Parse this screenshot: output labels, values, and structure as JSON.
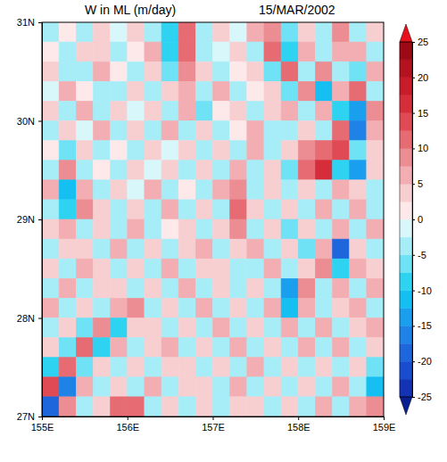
{
  "chart_data": {
    "type": "heatmap",
    "title": "W in ML (m/day)",
    "subtitle": "15/MAR/2002",
    "x": [
      155.1,
      155.3,
      155.5,
      155.7,
      155.9,
      156.1,
      156.3,
      156.5,
      156.7,
      156.9,
      157.1,
      157.3,
      157.5,
      157.7,
      157.9,
      158.1,
      158.3,
      158.5,
      158.7,
      158.9
    ],
    "y": [
      30.9,
      30.7,
      30.5,
      30.3,
      30.1,
      29.9,
      29.7,
      29.5,
      29.3,
      29.1,
      28.9,
      28.7,
      28.5,
      28.3,
      28.1,
      27.9,
      27.7,
      27.5,
      27.3,
      27.1
    ],
    "values": [
      [
        -3,
        2,
        -4,
        3,
        -2,
        4,
        -3,
        -8,
        10,
        -4,
        3,
        -2,
        5,
        8,
        -6,
        4,
        -3,
        9,
        -5,
        3
      ],
      [
        2,
        -5,
        3,
        4,
        -3,
        2,
        5,
        -10,
        12,
        -3,
        -2,
        4,
        -5,
        10,
        -8,
        6,
        -4,
        5,
        7,
        -4
      ],
      [
        4,
        -3,
        -4,
        6,
        2,
        -5,
        3,
        -6,
        9,
        4,
        -3,
        2,
        3,
        -7,
        12,
        -5,
        8,
        -3,
        -6,
        5
      ],
      [
        -2,
        5,
        2,
        -4,
        -3,
        4,
        -5,
        3,
        6,
        -4,
        5,
        -3,
        2,
        4,
        -6,
        9,
        -12,
        6,
        10,
        -5
      ],
      [
        3,
        -4,
        6,
        -3,
        4,
        -2,
        3,
        -4,
        5,
        -6,
        2,
        4,
        -5,
        3,
        6,
        -4,
        5,
        -8,
        -14,
        8
      ],
      [
        -4,
        3,
        -2,
        5,
        -4,
        3,
        -3,
        6,
        -4,
        3,
        -5,
        2,
        6,
        -3,
        -5,
        4,
        -3,
        12,
        -16,
        6
      ],
      [
        2,
        -6,
        4,
        -3,
        2,
        -5,
        4,
        -2,
        3,
        -4,
        4,
        -3,
        5,
        -4,
        3,
        8,
        10,
        14,
        -6,
        3
      ],
      [
        -3,
        8,
        -5,
        2,
        -3,
        4,
        -2,
        3,
        -5,
        4,
        -3,
        6,
        -4,
        3,
        -6,
        10,
        16,
        -8,
        -14,
        4
      ],
      [
        5,
        -12,
        6,
        -3,
        3,
        -2,
        5,
        -4,
        2,
        -3,
        5,
        8,
        -3,
        4,
        -5,
        3,
        -4,
        6,
        3,
        -5
      ],
      [
        -3,
        -10,
        9,
        4,
        -4,
        3,
        -3,
        5,
        -3,
        4,
        -4,
        10,
        3,
        -5,
        4,
        -3,
        5,
        -4,
        6,
        -3
      ],
      [
        4,
        6,
        -5,
        3,
        -3,
        5,
        -4,
        2,
        4,
        -3,
        3,
        9,
        -4,
        3,
        -6,
        4,
        -5,
        7,
        -4,
        5
      ],
      [
        -5,
        3,
        4,
        -4,
        6,
        -3,
        4,
        -5,
        3,
        5,
        -4,
        3,
        5,
        -4,
        3,
        -6,
        5,
        -20,
        4,
        -3
      ],
      [
        3,
        -4,
        5,
        3,
        -4,
        4,
        -3,
        6,
        -5,
        3,
        4,
        -3,
        -4,
        6,
        -5,
        4,
        8,
        -9,
        5,
        3
      ],
      [
        -4,
        5,
        -3,
        4,
        3,
        -5,
        3,
        -4,
        5,
        -3,
        4,
        -5,
        3,
        -4,
        -15,
        9,
        -4,
        5,
        -3,
        6
      ],
      [
        5,
        -3,
        4,
        -5,
        6,
        8,
        -4,
        3,
        -4,
        5,
        -3,
        4,
        -4,
        5,
        -12,
        6,
        -3,
        4,
        5,
        -4
      ],
      [
        -4,
        4,
        -6,
        8,
        -10,
        4,
        3,
        -3,
        4,
        -4,
        5,
        -3,
        4,
        -3,
        5,
        -4,
        6,
        -3,
        4,
        5
      ],
      [
        3,
        -6,
        10,
        -8,
        5,
        -3,
        4,
        5,
        -3,
        3,
        -4,
        6,
        -3,
        4,
        -4,
        5,
        -3,
        5,
        -4,
        3
      ],
      [
        -8,
        12,
        -6,
        4,
        -3,
        4,
        -3,
        3,
        4,
        -5,
        3,
        -3,
        5,
        -4,
        3,
        -3,
        4,
        -4,
        3,
        -6
      ],
      [
        14,
        -16,
        5,
        -3,
        4,
        -3,
        5,
        -4,
        3,
        4,
        -3,
        5,
        -4,
        3,
        -5,
        4,
        -3,
        5,
        -5,
        -12
      ],
      [
        -18,
        8,
        -3,
        4,
        12,
        10,
        -3,
        4,
        -3,
        3,
        -4,
        3,
        4,
        -3,
        4,
        -3,
        5,
        -3,
        6,
        8
      ]
    ],
    "xlim": [
      155,
      159
    ],
    "ylim": [
      27,
      31
    ],
    "xticks": [
      {
        "value": 155,
        "label": "155E"
      },
      {
        "value": 156,
        "label": "156E"
      },
      {
        "value": 157,
        "label": "157E"
      },
      {
        "value": 158,
        "label": "158E"
      },
      {
        "value": 159,
        "label": "159E"
      }
    ],
    "yticks": [
      {
        "value": 27,
        "label": "27N"
      },
      {
        "value": 28,
        "label": "28N"
      },
      {
        "value": 29,
        "label": "29N"
      },
      {
        "value": 30,
        "label": "30N"
      },
      {
        "value": 31,
        "label": "31N"
      }
    ],
    "colorbar": {
      "range": [
        -25,
        25
      ],
      "levels": [
        -25,
        -22.5,
        -20,
        -17.5,
        -15,
        -12.5,
        -10,
        -7.5,
        -5,
        -2.5,
        0,
        2.5,
        5,
        7.5,
        10,
        12.5,
        15,
        17.5,
        20,
        22.5,
        25
      ],
      "ticks": [
        -25,
        -20,
        -15,
        -10,
        -5,
        0,
        5,
        10,
        15,
        20,
        25
      ],
      "colors": [
        "#0a1f8f",
        "#1432b4",
        "#1a4ccf",
        "#1e66dc",
        "#1f82e6",
        "#1a9fee",
        "#15bff2",
        "#2fd3f2",
        "#6fe2f5",
        "#a6edf8",
        "#d8f7fb",
        "#fde9e9",
        "#f8cfd1",
        "#f2aeb2",
        "#ec8d93",
        "#e66b73",
        "#df4a55",
        "#d62d3b",
        "#c81c2b",
        "#b5121f",
        "#9c0a16",
        "#e8101c"
      ]
    }
  }
}
